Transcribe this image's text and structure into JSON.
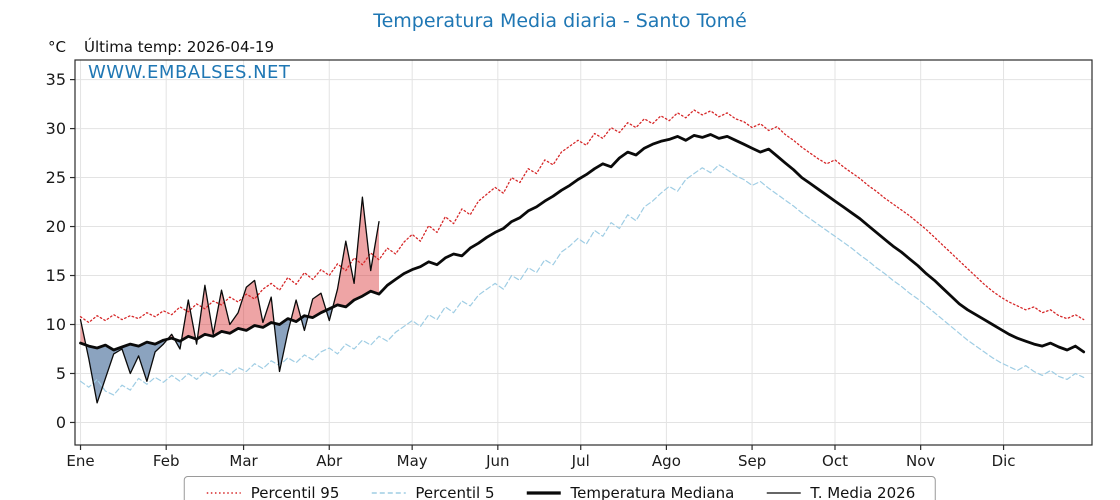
{
  "chart_data": {
    "type": "line",
    "title": "Temperatura Media diaria - Santo Tomé",
    "unit_label": "°C",
    "last_temp_label": "Última temp: 2026-04-19",
    "watermark": "WWW.EMBALSES.NET",
    "ylim": [
      -2.3,
      37
    ],
    "yticks": [
      0,
      5,
      10,
      15,
      20,
      25,
      30,
      35
    ],
    "x_months": [
      "Ene",
      "Feb",
      "Mar",
      "Abr",
      "May",
      "Jun",
      "Jul",
      "Ago",
      "Sep",
      "Oct",
      "Nov",
      "Dic"
    ],
    "month_start_days": [
      1,
      32,
      60,
      91,
      121,
      152,
      182,
      213,
      244,
      274,
      305,
      335
    ],
    "x_start_day": 1,
    "x_step_days": 3,
    "grid": true,
    "legend_position": "bottom",
    "fill_above_color": "rgba(214,39,40,0.42)",
    "fill_below_color": "rgba(62,102,148,0.60)",
    "series": [
      {
        "name": "Percentil 95",
        "color": "#d62728",
        "dash": "1.5 2.6",
        "width": 1.3,
        "legend_width": 1.6,
        "values": [
          10.8,
          10.2,
          10.9,
          10.4,
          11.0,
          10.5,
          10.9,
          10.6,
          11.2,
          10.8,
          11.4,
          11.0,
          11.8,
          11.3,
          12.1,
          11.6,
          12.4,
          12.0,
          12.8,
          12.3,
          13.1,
          12.6,
          13.6,
          14.2,
          13.5,
          14.8,
          14.1,
          15.3,
          14.6,
          15.6,
          15.0,
          16.2,
          15.5,
          16.8,
          16.1,
          17.3,
          16.6,
          17.8,
          17.2,
          18.4,
          19.2,
          18.5,
          20.1,
          19.4,
          21.0,
          20.3,
          21.8,
          21.2,
          22.6,
          23.3,
          24.0,
          23.4,
          25.0,
          24.5,
          25.9,
          25.4,
          26.8,
          26.3,
          27.6,
          28.2,
          28.8,
          28.3,
          29.5,
          29.0,
          30.1,
          29.6,
          30.6,
          30.1,
          31.0,
          30.5,
          31.3,
          30.8,
          31.6,
          31.1,
          31.9,
          31.4,
          31.8,
          31.2,
          31.6,
          31.0,
          30.7,
          30.1,
          30.5,
          29.8,
          30.2,
          29.4,
          28.8,
          28.1,
          27.5,
          26.9,
          26.4,
          26.8,
          26.1,
          25.5,
          24.9,
          24.2,
          23.6,
          22.9,
          22.3,
          21.7,
          21.1,
          20.4,
          19.7,
          18.9,
          18.1,
          17.3,
          16.5,
          15.7,
          14.9,
          14.1,
          13.4,
          12.8,
          12.3,
          11.9,
          11.5,
          11.8,
          11.2,
          11.5,
          10.9,
          10.6,
          11.0,
          10.5
        ]
      },
      {
        "name": "Percentil 5",
        "color": "#9fcde4",
        "dash": "5 3",
        "width": 1.2,
        "legend_width": 1.6,
        "values": [
          4.2,
          3.6,
          4.4,
          3.2,
          2.8,
          3.8,
          3.3,
          4.5,
          3.9,
          4.6,
          4.1,
          4.8,
          4.2,
          5.0,
          4.4,
          5.2,
          4.7,
          5.4,
          4.9,
          5.6,
          5.2,
          6.0,
          5.5,
          6.3,
          5.8,
          6.6,
          6.1,
          6.9,
          6.4,
          7.2,
          7.6,
          7.0,
          8.0,
          7.5,
          8.4,
          7.9,
          8.8,
          8.3,
          9.2,
          9.8,
          10.4,
          9.8,
          11.0,
          10.5,
          11.8,
          11.2,
          12.4,
          11.9,
          13.0,
          13.6,
          14.2,
          13.6,
          15.0,
          14.5,
          15.8,
          15.3,
          16.6,
          16.1,
          17.4,
          18.0,
          18.8,
          18.2,
          19.6,
          19.0,
          20.4,
          19.8,
          21.2,
          20.6,
          22.0,
          22.6,
          23.4,
          24.1,
          23.6,
          24.8,
          25.4,
          26.0,
          25.5,
          26.3,
          25.8,
          25.2,
          24.8,
          24.2,
          24.6,
          23.9,
          23.3,
          22.7,
          22.1,
          21.4,
          20.8,
          20.2,
          19.6,
          19.0,
          18.4,
          17.8,
          17.1,
          16.5,
          15.8,
          15.2,
          14.5,
          13.9,
          13.2,
          12.6,
          11.9,
          11.2,
          10.5,
          9.8,
          9.1,
          8.4,
          7.8,
          7.2,
          6.6,
          6.1,
          5.7,
          5.3,
          5.8,
          5.2,
          4.8,
          5.3,
          4.7,
          4.4,
          5.0,
          4.6
        ]
      },
      {
        "name": "Temperatura Mediana",
        "color": "#0a0a0a",
        "dash": "",
        "width": 2.8,
        "legend_width": 3.2,
        "values": [
          8.1,
          7.8,
          7.6,
          7.9,
          7.4,
          7.7,
          8.0,
          7.8,
          8.2,
          8.0,
          8.4,
          8.6,
          8.3,
          8.8,
          8.5,
          9.0,
          8.8,
          9.3,
          9.1,
          9.6,
          9.4,
          9.9,
          9.7,
          10.2,
          10.0,
          10.6,
          10.3,
          10.9,
          10.7,
          11.2,
          11.6,
          12.0,
          11.8,
          12.5,
          12.9,
          13.4,
          13.1,
          14.0,
          14.6,
          15.2,
          15.6,
          15.9,
          16.4,
          16.1,
          16.8,
          17.2,
          17.0,
          17.8,
          18.3,
          18.9,
          19.4,
          19.8,
          20.5,
          20.9,
          21.6,
          22.0,
          22.6,
          23.1,
          23.7,
          24.2,
          24.8,
          25.3,
          25.9,
          26.4,
          26.1,
          27.0,
          27.6,
          27.3,
          28.0,
          28.4,
          28.7,
          28.9,
          29.2,
          28.8,
          29.3,
          29.1,
          29.4,
          29.0,
          29.2,
          28.8,
          28.4,
          28.0,
          27.6,
          27.9,
          27.2,
          26.5,
          25.8,
          25.0,
          24.4,
          23.8,
          23.2,
          22.6,
          22.0,
          21.4,
          20.8,
          20.1,
          19.4,
          18.7,
          18.0,
          17.4,
          16.7,
          16.0,
          15.2,
          14.5,
          13.7,
          12.9,
          12.1,
          11.5,
          11.0,
          10.5,
          10.0,
          9.5,
          9.0,
          8.6,
          8.3,
          8.0,
          7.8,
          8.1,
          7.7,
          7.4,
          7.8,
          7.2
        ]
      },
      {
        "name": "T. Media 2026",
        "color": "#0a0a0a",
        "dash": "",
        "width": 1.3,
        "legend_width": 1.3,
        "values": [
          10.5,
          6.5,
          2.0,
          4.5,
          7.0,
          7.5,
          5.0,
          6.8,
          4.2,
          7.2,
          8.0,
          9.0,
          7.5,
          12.5,
          8.0,
          14.0,
          9.0,
          13.5,
          10.0,
          11.2,
          13.8,
          14.5,
          10.2,
          12.8,
          5.2,
          9.2,
          12.5,
          9.4,
          12.6,
          13.2,
          10.4,
          13.6,
          18.5,
          14.2,
          23.0,
          15.5,
          20.5
        ]
      }
    ]
  }
}
